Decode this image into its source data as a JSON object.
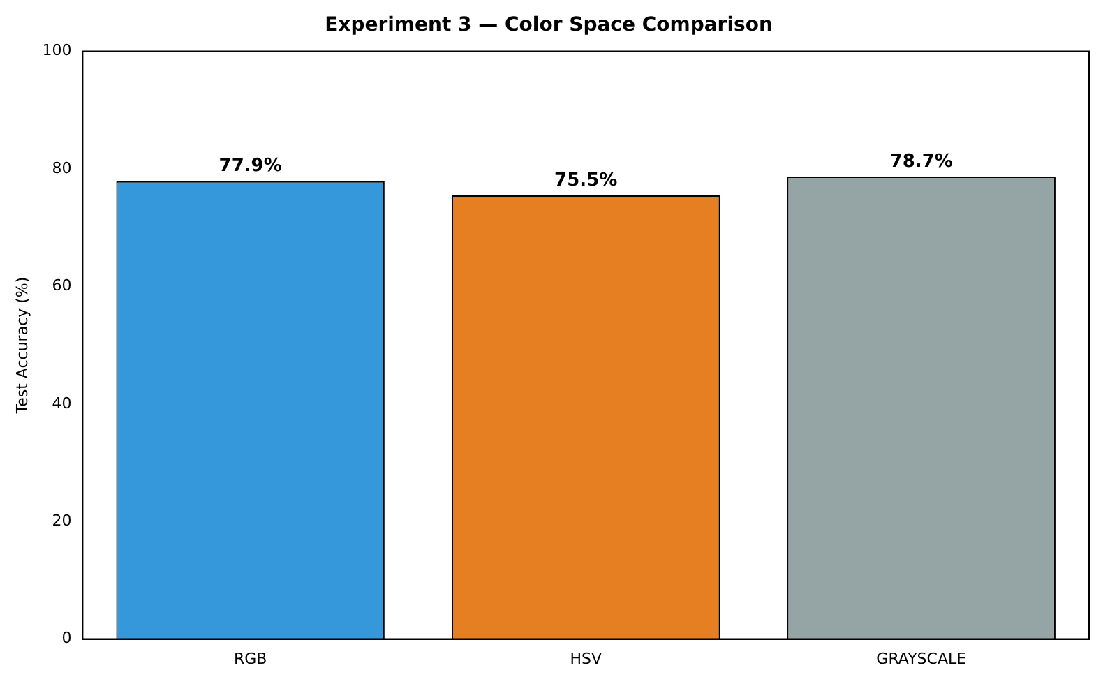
{
  "chart_data": {
    "type": "bar",
    "title": "Experiment 3 — Color Space Comparison",
    "ylabel": "Test Accuracy (%)",
    "categories": [
      "RGB",
      "HSV",
      "GRAYSCALE"
    ],
    "values": [
      77.9,
      75.5,
      78.7
    ],
    "colors": [
      "#3498db",
      "#e67e22",
      "#95a5a6"
    ],
    "value_labels": [
      "77.9%",
      "75.5%",
      "78.7%"
    ],
    "ylim": [
      0,
      100
    ],
    "yticks": [
      0,
      20,
      40,
      60,
      80,
      100
    ],
    "grid": false,
    "legend": false
  }
}
